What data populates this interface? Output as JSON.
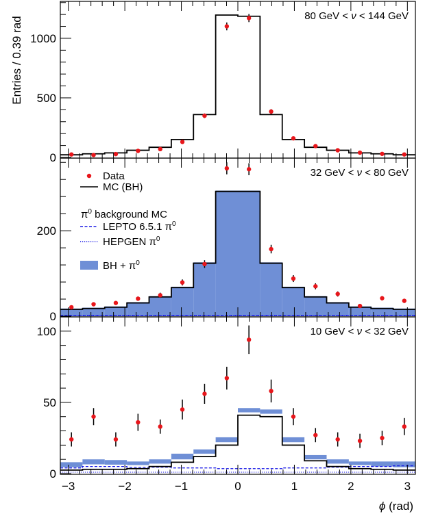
{
  "colors": {
    "data": "#e8161b",
    "mc": "#000000",
    "band": "#6f8fd6",
    "lepto": "#1a1ae6",
    "hepgen": "#1a1ae6"
  },
  "chart_data": {
    "type": "histogram",
    "shared_x": {
      "label_pre": "",
      "label_sym": "ϕ",
      "label_post": " (rad)",
      "xlim": [
        -3.1416,
        3.1416
      ],
      "ticks": [
        -3,
        -2,
        -1,
        0,
        1,
        2,
        3
      ],
      "tick_labels": [
        "−3",
        "−2",
        "−1",
        "0",
        "1",
        "2",
        "3"
      ],
      "bin_edges": [
        -3.1416,
        -2.7489,
        -2.3562,
        -1.9635,
        -1.5708,
        -1.1781,
        -0.7854,
        -0.3927,
        0,
        0.3927,
        0.7854,
        1.1781,
        1.5708,
        1.9635,
        2.3562,
        2.7489,
        3.1416
      ],
      "bin_centers": [
        -2.945,
        -2.553,
        -2.16,
        -1.767,
        -1.374,
        -0.982,
        -0.589,
        -0.196,
        0.196,
        0.589,
        0.982,
        1.374,
        1.767,
        2.16,
        2.553,
        2.945
      ]
    },
    "ylabel": "Entries / 0.39 rad",
    "legend": {
      "data": "Data",
      "mc": "MC (BH)",
      "bg_header_pre": "π",
      "bg_header_sup": "0",
      "bg_header_post": " background MC",
      "lepto_pre": "LEPTO 6.5.1 π",
      "lepto_sup": "0",
      "hepgen_pre": "HEPGEN π",
      "hepgen_sup": "0",
      "band_pre": "BH + π",
      "band_sup": "0"
    },
    "panels": [
      {
        "title_pre": "80 GeV < ",
        "title_nu": "ν",
        "title_post": " < 144 GeV",
        "ylim": [
          0,
          1310
        ],
        "yticks": [
          0,
          500,
          1000
        ],
        "ytick_labels": [
          "0",
          "500",
          "1000"
        ],
        "mc": [
          22,
          30,
          38,
          60,
          85,
          150,
          360,
          1195,
          1185,
          360,
          150,
          85,
          60,
          38,
          30,
          22
        ],
        "data": [
          25,
          20,
          28,
          55,
          70,
          130,
          350,
          1100,
          1170,
          385,
          160,
          95,
          60,
          40,
          30,
          25
        ],
        "data_err": [
          4,
          4,
          5,
          7,
          8,
          11,
          19,
          33,
          34,
          20,
          13,
          10,
          8,
          6,
          6,
          5
        ],
        "band": null,
        "lepto": null,
        "hepgen": null
      },
      {
        "title_pre": "32 GeV < ",
        "title_nu": "ν",
        "title_post": " < 80 GeV",
        "ylim": [
          0,
          370
        ],
        "yticks": [
          0,
          200
        ],
        "ytick_labels": [
          "0",
          "200"
        ],
        "mc": [
          16,
          18,
          21,
          31,
          45,
          67,
          124,
          292,
          292,
          124,
          67,
          45,
          31,
          21,
          18,
          16
        ],
        "data": [
          21,
          28,
          31,
          41,
          49,
          79,
          122,
          346,
          344,
          157,
          88,
          70,
          52,
          24,
          42,
          36
        ],
        "data_err": [
          3,
          4,
          4,
          5,
          6,
          7,
          9,
          14,
          14,
          10,
          8,
          7,
          6,
          4,
          5,
          5
        ],
        "band": [
          18,
          20,
          23,
          33,
          47,
          69,
          126,
          294,
          294,
          126,
          69,
          47,
          33,
          23,
          20,
          18
        ],
        "lepto": [
          2,
          2,
          2,
          2,
          2,
          2,
          2,
          2,
          2,
          2,
          2,
          2,
          2,
          2,
          2,
          2
        ],
        "hepgen": [
          1,
          1,
          1,
          1,
          1,
          1,
          1,
          1,
          1,
          1,
          1,
          1,
          1,
          1,
          1,
          1
        ]
      },
      {
        "title_pre": "10 GeV < ",
        "title_nu": "ν",
        "title_post": " < 32 GeV",
        "ylim": [
          0,
          110
        ],
        "yticks": [
          0,
          50,
          100
        ],
        "ytick_labels": [
          "0",
          "50",
          "100"
        ],
        "mc": [
          2.5,
          3,
          3,
          3.5,
          5,
          8,
          12,
          20,
          41,
          40,
          20,
          9,
          5,
          3.5,
          3,
          2.5
        ],
        "data": [
          24,
          40,
          24,
          36,
          33,
          45,
          56,
          67,
          94,
          58,
          40,
          27,
          24,
          23,
          25,
          33
        ],
        "data_err": [
          5,
          6,
          5,
          6,
          5,
          7,
          7,
          8,
          10,
          8,
          6,
          5,
          5,
          5,
          5,
          6
        ],
        "band": [
          [
            4.5,
            8
          ],
          [
            6.5,
            10
          ],
          [
            6.3,
            9.5
          ],
          [
            6,
            8.5
          ],
          [
            7,
            10
          ],
          [
            10,
            14
          ],
          [
            14,
            17
          ],
          [
            22,
            25.5
          ],
          [
            43,
            46
          ],
          [
            42,
            45
          ],
          [
            22,
            25.5
          ],
          [
            10,
            13
          ],
          [
            7,
            10
          ],
          [
            6,
            8.5
          ],
          [
            5,
            8.5
          ],
          [
            4.5,
            8.5
          ]
        ],
        "lepto": [
          4,
          5,
          5,
          4.5,
          4.5,
          4,
          4,
          3.5,
          3.5,
          3.5,
          4,
          4,
          4.5,
          5,
          5,
          5.5
        ],
        "hepgen": [
          1,
          1,
          1,
          1,
          1,
          1,
          1,
          1,
          1,
          1,
          1,
          1,
          1,
          1,
          1,
          1
        ]
      }
    ]
  }
}
